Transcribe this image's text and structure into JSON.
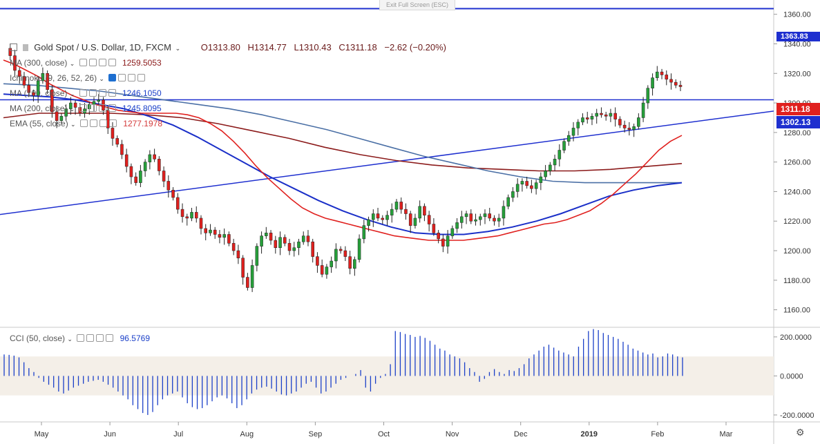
{
  "toolbar": {
    "exit_fullscreen": "Exit Full Screen (ESC)"
  },
  "symbol": {
    "title": "Gold Spot / U.S. Dollar, 1D, FXCM",
    "open": "O1313.80",
    "high": "H1314.77",
    "low": "L1310.43",
    "close": "C1311.18",
    "change": "−2.62 (−0.20%)"
  },
  "indicators": [
    {
      "name": "MA (300, close)",
      "value": "1259.5053",
      "color": "#8b1a1a"
    },
    {
      "name": "Ichimoku (9, 26, 52, 26)",
      "value": "",
      "color": "#444444"
    },
    {
      "name": "MA (100, close)",
      "value": "1246.1050",
      "color": "#1a3fc8"
    },
    {
      "name": "MA (200, close)",
      "value": "1245.8095",
      "color": "#1a3fc8"
    },
    {
      "name": "EMA (55, close)",
      "value": "1277.1978",
      "color": "#d43a3a"
    }
  ],
  "cci": {
    "name": "CCI (50, close)",
    "value": "96.5769",
    "color": "#1a3fc8"
  },
  "price_labels": {
    "top": "1363.83",
    "current": "1311.18",
    "level": "1302.13"
  },
  "colors": {
    "up": "#26a03a",
    "down": "#e0201e",
    "line_blue": "#1e2fcf",
    "steel": "#4a6fa5"
  },
  "chart_data": {
    "type": "candlestick",
    "y_ticks": [
      "1360.00",
      "1340.00",
      "1320.00",
      "1300.00",
      "1280.00",
      "1260.00",
      "1240.00",
      "1220.00",
      "1200.00",
      "1180.00",
      "1160.00"
    ],
    "y_range": [
      1150,
      1365
    ],
    "x_labels": [
      "May",
      "Jun",
      "Jul",
      "Aug",
      "Sep",
      "Oct",
      "Nov",
      "Dec",
      "2019",
      "Feb",
      "Mar"
    ],
    "cci_ticks": [
      "200.0000",
      "0.0000",
      "-200.0000"
    ],
    "cci_range": [
      -225,
      235
    ],
    "horizontal_levels": [
      1363.83,
      1302.13
    ],
    "trendline": {
      "from_price": 1224.5,
      "to_price": 1294.5
    },
    "close_path": [
      1337,
      1332,
      1322,
      1318,
      1312,
      1307,
      1305,
      1315,
      1320,
      1309,
      1294,
      1288,
      1291,
      1296,
      1300,
      1297,
      1293,
      1296,
      1299,
      1301,
      1302,
      1295,
      1283,
      1276,
      1272,
      1265,
      1257,
      1250,
      1246,
      1254,
      1260,
      1265,
      1262,
      1254,
      1247,
      1241,
      1236,
      1228,
      1223,
      1222,
      1226,
      1222,
      1215,
      1212,
      1214,
      1211,
      1209,
      1211,
      1205,
      1200,
      1195,
      1182,
      1175,
      1190,
      1203,
      1210,
      1212,
      1207,
      1202,
      1209,
      1205,
      1200,
      1202,
      1206,
      1210,
      1206,
      1196,
      1190,
      1184,
      1189,
      1193,
      1201,
      1200,
      1196,
      1188,
      1194,
      1208,
      1217,
      1221,
      1225,
      1222,
      1221,
      1224,
      1228,
      1233,
      1228,
      1225,
      1217,
      1222,
      1230,
      1224,
      1218,
      1212,
      1208,
      1203,
      1210,
      1215,
      1219,
      1223,
      1225,
      1220,
      1221,
      1223,
      1225,
      1222,
      1220,
      1222,
      1230,
      1236,
      1240,
      1245,
      1247,
      1244,
      1242,
      1246,
      1250,
      1254,
      1258,
      1262,
      1268,
      1274,
      1278,
      1283,
      1287,
      1290,
      1289,
      1291,
      1293,
      1292,
      1291,
      1293,
      1289,
      1285,
      1283,
      1282,
      1284,
      1290,
      1300,
      1310,
      1317,
      1321,
      1319,
      1316,
      1314,
      1312,
      1311
    ],
    "ema55": [
      1329,
      1326,
      1322,
      1318,
      1313,
      1309,
      1305,
      1302,
      1299,
      1297,
      1295,
      1294,
      1293,
      1293,
      1293,
      1293,
      1292,
      1290,
      1286,
      1281,
      1274,
      1266,
      1257,
      1249,
      1242,
      1235,
      1229,
      1225,
      1222,
      1220,
      1218,
      1216,
      1214,
      1212,
      1210,
      1209,
      1208,
      1207,
      1207,
      1207,
      1207,
      1208,
      1209,
      1210,
      1212,
      1214,
      1216,
      1218,
      1219,
      1221,
      1224,
      1227,
      1232,
      1238,
      1245,
      1252,
      1260,
      1268,
      1274,
      1278
    ],
    "ma100": [
      1306,
      1305,
      1304,
      1302,
      1299,
      1296,
      1291,
      1285,
      1277,
      1268,
      1259,
      1250,
      1242,
      1234,
      1227,
      1221,
      1216,
      1212,
      1211,
      1211,
      1213,
      1216,
      1220,
      1225,
      1231,
      1237,
      1241,
      1244,
      1246
    ],
    "ma200": [
      1313,
      1312,
      1310,
      1308,
      1305,
      1302,
      1299,
      1296,
      1292,
      1287,
      1282,
      1276,
      1270,
      1264,
      1259,
      1254,
      1250,
      1247,
      1246,
      1246,
      1246,
      1246
    ],
    "ma300": [
      1290,
      1293,
      1293,
      1293,
      1292,
      1290,
      1286,
      1281,
      1276,
      1270,
      1265,
      1261,
      1258,
      1256,
      1255,
      1254,
      1254,
      1255,
      1257,
      1259
    ],
    "cci_values": [
      110,
      108,
      104,
      95,
      70,
      40,
      20,
      -10,
      -30,
      -45,
      -60,
      -80,
      -90,
      -75,
      -60,
      -50,
      -40,
      -30,
      -25,
      -20,
      -30,
      -45,
      -60,
      -80,
      -100,
      -120,
      -150,
      -170,
      -190,
      -200,
      -185,
      -150,
      -120,
      -100,
      -90,
      -80,
      -110,
      -140,
      -160,
      -170,
      -165,
      -150,
      -130,
      -110,
      -100,
      -115,
      -140,
      -165,
      -150,
      -120,
      -90,
      -70,
      -60,
      -55,
      -65,
      -80,
      -95,
      -100,
      -90,
      -80,
      -60,
      -40,
      -30,
      -60,
      -90,
      -80,
      -60,
      -40,
      -20,
      -10,
      0,
      10,
      30,
      -60,
      -80,
      -40,
      -10,
      10,
      60,
      230,
      225,
      215,
      210,
      200,
      205,
      195,
      180,
      160,
      140,
      130,
      110,
      100,
      90,
      70,
      40,
      20,
      -30,
      -15,
      20,
      35,
      20,
      10,
      30,
      25,
      40,
      60,
      90,
      110,
      130,
      150,
      160,
      145,
      130,
      120,
      110,
      100,
      150,
      190,
      230,
      240,
      235,
      220,
      210,
      200,
      190,
      175,
      160,
      140,
      130,
      120,
      110,
      115,
      95,
      100,
      115,
      110,
      100,
      95
    ]
  }
}
